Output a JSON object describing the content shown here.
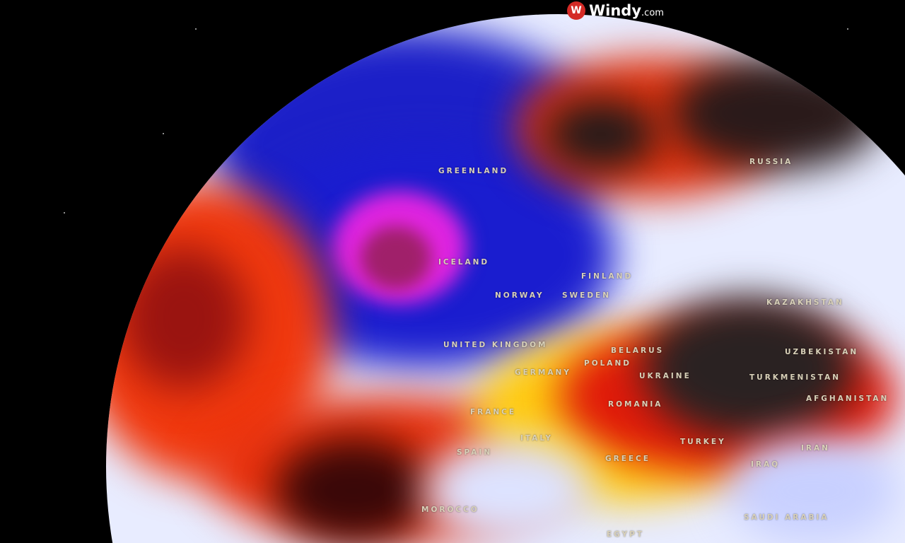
{
  "brand": {
    "name": "Windy",
    "suffix": ".com",
    "icon": "windy-logo-icon"
  },
  "map": {
    "type": "globe",
    "layer_colors": {
      "cold": "#1a1fcf",
      "deep_cold": "#e020e0",
      "neutral": "#e8ecff",
      "warm": "#ffd21a",
      "hot": "#e8220e",
      "extreme": "#2a2222"
    },
    "labels": [
      "GREENLAND",
      "RUSSIA",
      "ICELAND",
      "FINLAND",
      "NORWAY",
      "SWEDEN",
      "UNITED KINGDOM",
      "BELARUS",
      "POLAND",
      "GERMANY",
      "UKRAINE",
      "KAZAKHSTAN",
      "UZBEKISTAN",
      "TURKMENISTAN",
      "AFGHANISTAN",
      "FRANCE",
      "ROMANIA",
      "ITALY",
      "SPAIN",
      "GREECE",
      "TURKEY",
      "IRAN",
      "IRAQ",
      "MOROCCO",
      "SAUDI ARABIA",
      "EGYPT"
    ]
  }
}
